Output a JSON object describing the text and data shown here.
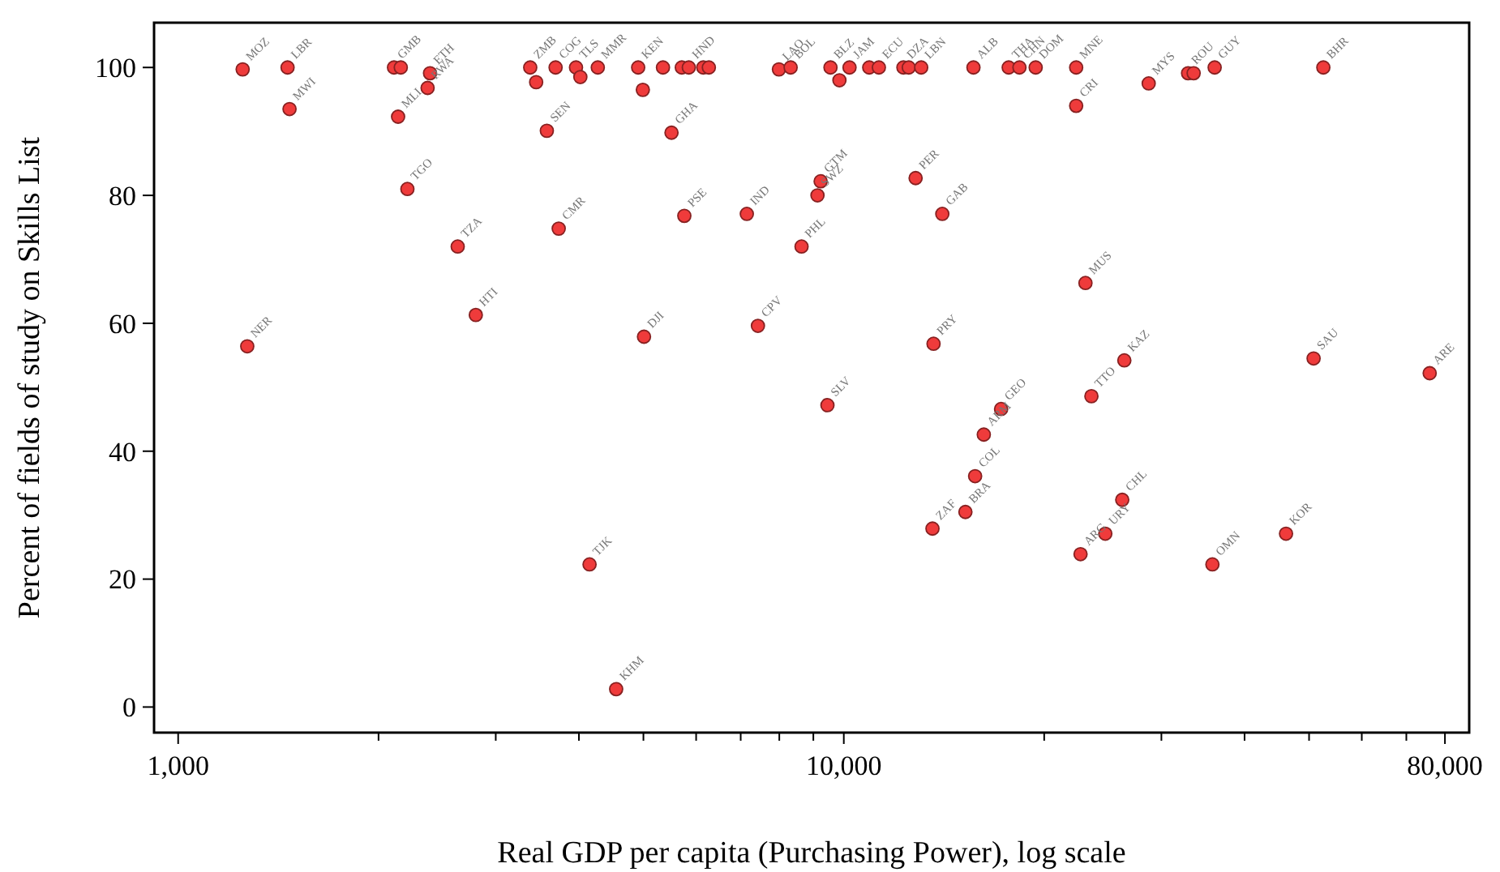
{
  "chart_data": {
    "type": "scatter",
    "xlabel": "Real GDP per capita (Purchasing Power), log scale",
    "ylabel": "Percent of fields of study on Skills List",
    "log": "x",
    "grid": false,
    "marker": "circle",
    "xlim": [
      920,
      87000
    ],
    "ylim": [
      -4,
      107
    ],
    "xticks": [
      {
        "value": 1000,
        "label": "1,000"
      },
      {
        "value": 2000,
        "label": null
      },
      {
        "value": 3000,
        "label": null
      },
      {
        "value": 4000,
        "label": null
      },
      {
        "value": 5000,
        "label": null
      },
      {
        "value": 6000,
        "label": null
      },
      {
        "value": 7000,
        "label": null
      },
      {
        "value": 8000,
        "label": null
      },
      {
        "value": 9000,
        "label": null
      },
      {
        "value": 10000,
        "label": "10,000"
      },
      {
        "value": 20000,
        "label": null
      },
      {
        "value": 30000,
        "label": null
      },
      {
        "value": 40000,
        "label": null
      },
      {
        "value": 50000,
        "label": null
      },
      {
        "value": 60000,
        "label": null
      },
      {
        "value": 70000,
        "label": null
      },
      {
        "value": 80000,
        "label": "80,000"
      }
    ],
    "yticks": [
      0,
      20,
      40,
      60,
      80,
      100
    ],
    "series": [
      {
        "color": "#ef3b3b",
        "x": [
          1250,
          1460,
          1470,
          2110,
          2160,
          2140,
          2390,
          2370,
          2210,
          3380,
          3450,
          3690,
          3960,
          4020,
          4270,
          3580,
          4910,
          4990,
          5350,
          5710,
          5850,
          6150,
          6270,
          5510,
          7990,
          8320,
          9550,
          9850,
          10200,
          10920,
          11290,
          12290,
          12520,
          13070,
          15660,
          17690,
          18360,
          19420,
          22340,
          22340,
          28710,
          32900,
          33540,
          36070,
          52530,
          9230,
          9130,
          12820,
          2630,
          3730,
          5760,
          7150,
          8640,
          2800,
          1270,
          5010,
          7430,
          4150,
          4550,
          14060,
          23070,
          13640,
          26390,
          23550,
          50790,
          75890,
          9450,
          17230,
          16230,
          15750,
          15230,
          13590,
          26200,
          24710,
          22680,
          35790,
          46170
        ],
        "values": [
          99.7,
          100,
          93.5,
          100,
          100,
          92.3,
          99.1,
          96.8,
          81.0,
          100,
          97.7,
          100,
          100,
          98.5,
          100,
          90.1,
          100,
          96.5,
          100,
          100,
          100,
          100,
          100,
          89.8,
          99.7,
          100,
          100,
          98.0,
          100,
          100,
          100,
          100,
          100,
          100,
          100,
          100,
          100,
          100,
          100,
          94.0,
          97.5,
          99.1,
          99.1,
          100,
          100,
          82.2,
          80.0,
          82.7,
          72.0,
          74.8,
          76.8,
          77.1,
          72.0,
          61.3,
          56.4,
          57.9,
          59.6,
          22.3,
          2.8,
          77.1,
          66.3,
          56.8,
          54.2,
          48.6,
          54.5,
          52.2,
          47.2,
          46.6,
          42.6,
          36.1,
          30.5,
          27.9,
          32.4,
          27.1,
          23.9,
          22.3,
          27.1
        ]
      }
    ],
    "annotations": [
      {
        "text": "MOZ",
        "x": 1250,
        "y": 99.7
      },
      {
        "text": "LBR",
        "x": 1460,
        "y": 100
      },
      {
        "text": "MWI",
        "x": 1470,
        "y": 93.5
      },
      {
        "text": "GMB",
        "x": 2110,
        "y": 100
      },
      {
        "text": "MLI",
        "x": 2140,
        "y": 92.3
      },
      {
        "text": "ETH",
        "x": 2390,
        "y": 99.1
      },
      {
        "text": "RWA",
        "x": 2370,
        "y": 96.8
      },
      {
        "text": "TGO",
        "x": 2210,
        "y": 81.0
      },
      {
        "text": "ZMB",
        "x": 3380,
        "y": 100
      },
      {
        "text": "COG",
        "x": 3690,
        "y": 100
      },
      {
        "text": "TLS",
        "x": 3960,
        "y": 100
      },
      {
        "text": "MMR",
        "x": 4270,
        "y": 100
      },
      {
        "text": "SEN",
        "x": 3580,
        "y": 90.1
      },
      {
        "text": "KEN",
        "x": 4910,
        "y": 100
      },
      {
        "text": "HND",
        "x": 5850,
        "y": 100
      },
      {
        "text": "GHA",
        "x": 5510,
        "y": 89.8
      },
      {
        "text": "LAO",
        "x": 7990,
        "y": 99.7
      },
      {
        "text": "BOL",
        "x": 8320,
        "y": 100
      },
      {
        "text": "BLZ",
        "x": 9550,
        "y": 100
      },
      {
        "text": "JAM",
        "x": 10200,
        "y": 100
      },
      {
        "text": "ECU",
        "x": 11290,
        "y": 100
      },
      {
        "text": "DZA",
        "x": 12290,
        "y": 100
      },
      {
        "text": "LBN",
        "x": 13070,
        "y": 100
      },
      {
        "text": "ALB",
        "x": 15660,
        "y": 100
      },
      {
        "text": "THA",
        "x": 17690,
        "y": 100
      },
      {
        "text": "CHN",
        "x": 18360,
        "y": 100
      },
      {
        "text": "DOM",
        "x": 19420,
        "y": 100
      },
      {
        "text": "MNE",
        "x": 22340,
        "y": 100
      },
      {
        "text": "CRI",
        "x": 22340,
        "y": 94.0
      },
      {
        "text": "MYS",
        "x": 28710,
        "y": 97.5
      },
      {
        "text": "ROU",
        "x": 32900,
        "y": 99.1
      },
      {
        "text": "GUY",
        "x": 36070,
        "y": 100
      },
      {
        "text": "BHR",
        "x": 52530,
        "y": 100
      },
      {
        "text": "GTM",
        "x": 9230,
        "y": 82.2
      },
      {
        "text": "SWZ",
        "x": 9130,
        "y": 80.0
      },
      {
        "text": "PER",
        "x": 12820,
        "y": 82.7
      },
      {
        "text": "TZA",
        "x": 2630,
        "y": 72.0
      },
      {
        "text": "CMR",
        "x": 3730,
        "y": 74.8
      },
      {
        "text": "PSE",
        "x": 5760,
        "y": 76.8
      },
      {
        "text": "IND",
        "x": 7150,
        "y": 77.1
      },
      {
        "text": "PHL",
        "x": 8640,
        "y": 72.0
      },
      {
        "text": "HTI",
        "x": 2800,
        "y": 61.3
      },
      {
        "text": "NER",
        "x": 1270,
        "y": 56.4
      },
      {
        "text": "DJI",
        "x": 5010,
        "y": 57.9
      },
      {
        "text": "CPV",
        "x": 7430,
        "y": 59.6
      },
      {
        "text": "TJK",
        "x": 4150,
        "y": 22.3
      },
      {
        "text": "KHM",
        "x": 4550,
        "y": 2.8
      },
      {
        "text": "GAB",
        "x": 14060,
        "y": 77.1
      },
      {
        "text": "MUS",
        "x": 23070,
        "y": 66.3
      },
      {
        "text": "PRY",
        "x": 13640,
        "y": 56.8
      },
      {
        "text": "KAZ",
        "x": 26390,
        "y": 54.2
      },
      {
        "text": "TTO",
        "x": 23550,
        "y": 48.6
      },
      {
        "text": "SAU",
        "x": 50790,
        "y": 54.5
      },
      {
        "text": "ARE",
        "x": 75890,
        "y": 52.2
      },
      {
        "text": "SLV",
        "x": 9450,
        "y": 47.2
      },
      {
        "text": "GEO",
        "x": 17230,
        "y": 46.6
      },
      {
        "text": "ARM",
        "x": 16230,
        "y": 42.6
      },
      {
        "text": "COL",
        "x": 15750,
        "y": 36.1
      },
      {
        "text": "BRA",
        "x": 15230,
        "y": 30.5
      },
      {
        "text": "ZAF",
        "x": 13590,
        "y": 27.9
      },
      {
        "text": "CHL",
        "x": 26200,
        "y": 32.4
      },
      {
        "text": "URY",
        "x": 24710,
        "y": 27.1
      },
      {
        "text": "ARG",
        "x": 22680,
        "y": 23.9
      },
      {
        "text": "OMN",
        "x": 35790,
        "y": 22.3
      },
      {
        "text": "KOR",
        "x": 46170,
        "y": 27.1
      }
    ]
  }
}
